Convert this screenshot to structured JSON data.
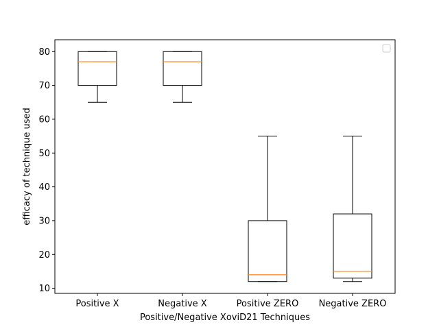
{
  "chart_data": {
    "type": "box",
    "title": "",
    "xlabel": "Positive/Negative XoviD21 Techniques",
    "ylabel": "efficacy of technique used",
    "ylim": [
      8.5,
      83.5
    ],
    "yticks": [
      10,
      20,
      30,
      40,
      50,
      60,
      70,
      80
    ],
    "categories": [
      "Positive X",
      "Negative X",
      "Positive ZERO",
      "Negative ZERO"
    ],
    "boxes": [
      {
        "whisker_low": 65,
        "q1": 70,
        "median": 77,
        "q3": 80,
        "whisker_high": 80
      },
      {
        "whisker_low": 65,
        "q1": 70,
        "median": 77,
        "q3": 80,
        "whisker_high": 80
      },
      {
        "whisker_low": 12,
        "q1": 12,
        "median": 14,
        "q3": 30,
        "whisker_high": 55
      },
      {
        "whisker_low": 12,
        "q1": 13,
        "median": 15,
        "q3": 32,
        "whisker_high": 55
      }
    ],
    "legend": {
      "placement": "top-right",
      "entries": []
    },
    "grid": false,
    "colors": {
      "box": "#000000",
      "median": "#ff7f0e"
    }
  }
}
